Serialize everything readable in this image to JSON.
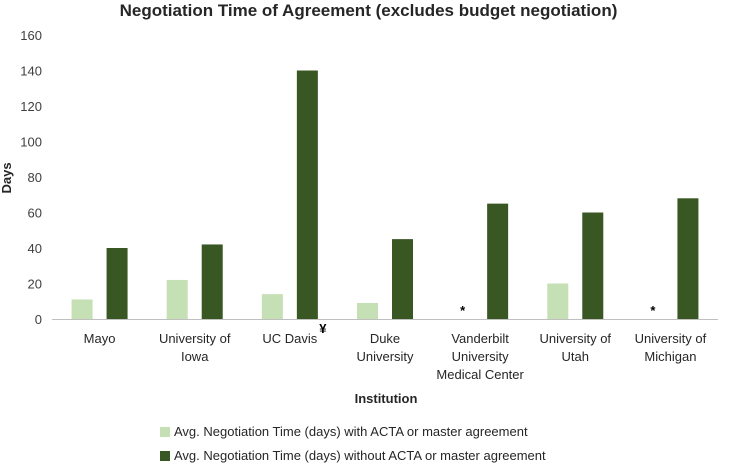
{
  "chart_data": {
    "type": "bar",
    "title": "Negotiation Time of Agreement (excludes budget negotiation)",
    "xlabel": "Institution",
    "ylabel": "Days",
    "ylim": [
      0,
      160
    ],
    "yticks": [
      0,
      20,
      40,
      60,
      80,
      100,
      120,
      140,
      160
    ],
    "grid": false,
    "legend_position": "bottom",
    "categories": [
      [
        "Mayo"
      ],
      [
        "University of",
        "Iowa"
      ],
      [
        "UC Davis"
      ],
      [
        "Duke",
        "University"
      ],
      [
        "Vanderbilt",
        "University",
        "Medical Center"
      ],
      [
        "University of",
        "Utah"
      ],
      [
        "University of",
        "Michigan"
      ]
    ],
    "series": [
      {
        "name": "Avg. Negotiation Time (days) with ACTA or master agreement",
        "color": "#c5e0b4",
        "values": [
          11,
          22,
          14,
          9,
          null,
          20,
          null
        ]
      },
      {
        "name": "Avg. Negotiation Time (days) without ACTA or master agreement",
        "color": "#385723",
        "values": [
          40,
          42,
          140,
          45,
          65,
          60,
          68
        ]
      }
    ],
    "annotations": [
      {
        "category_index": 2,
        "text": "¥"
      },
      {
        "category_index": 4,
        "text": "*"
      },
      {
        "category_index": 6,
        "text": "*"
      }
    ]
  }
}
